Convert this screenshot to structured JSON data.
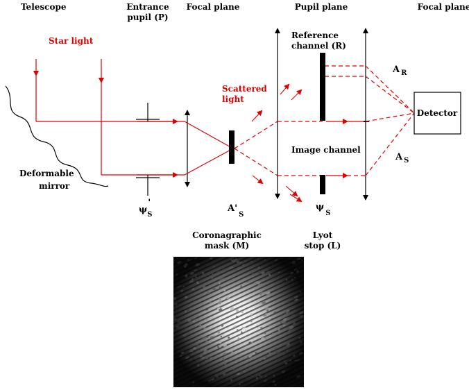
{
  "headers": {
    "telescope": "Telescope",
    "entrance_line1": "Entrance",
    "entrance_line2": "pupil (P)",
    "focal_plane_1": "Focal plane",
    "pupil_plane": "Pupil plane",
    "focal_plane_2": "Focal plane"
  },
  "labels": {
    "star_light": "Star light",
    "scattered_line1": "Scattered",
    "scattered_line2": "light",
    "reference_line1": "Reference",
    "reference_line2": "channel (R)",
    "image_channel": "Image channel",
    "detector": "Detector",
    "deformable_line1": "Deformable",
    "deformable_line2": "mirror",
    "coronagraphic_line1": "Coronagraphic",
    "coronagraphic_line2": "mask (M)",
    "lyot_line1": "Lyot",
    "lyot_line2": "stop (L)"
  },
  "symbols": {
    "psi": "ψ",
    "psi_prime": "'",
    "psi_sub": "S",
    "a_prime": "A'",
    "a_prime_sub": "S",
    "psi_lyot": "ψ",
    "psi_lyot_sub": "S",
    "a_r": "A",
    "a_r_sub": "R",
    "a_s": "A",
    "a_s_sub": "S"
  },
  "colors": {
    "light": "#e00000",
    "ink": "#000000"
  },
  "speckle_image": {
    "description_icon": "speckle-pattern-image"
  }
}
